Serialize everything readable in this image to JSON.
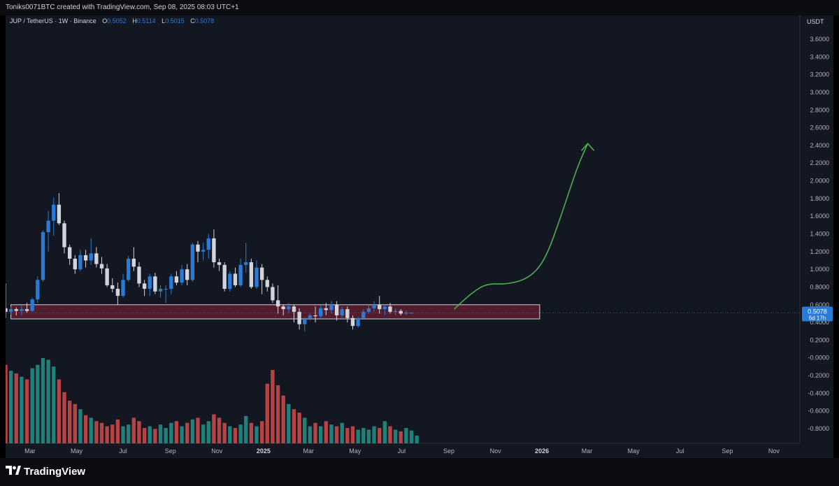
{
  "header": {
    "watermark": "Toniks0071BTC created with TradingView.com, Sep 08, 2025 08:03 UTC+1"
  },
  "legend": {
    "symbol": "JUP / TetherUS · 1W · Binance",
    "o_label": "O",
    "o_value": "0.5052",
    "h_label": "H",
    "h_value": "0.5114",
    "l_label": "L",
    "l_value": "0.5015",
    "c_label": "C",
    "c_value": "0.5078"
  },
  "footer": {
    "brand": "TradingView",
    "logo_icon": "tradingview-logo-icon"
  },
  "colors": {
    "up": "#2a7bd8",
    "down": "#d1d4dc",
    "vol_up": "#26a69a",
    "vol_down": "#ef5350",
    "zone_fill": "#7b1f34",
    "projection": "#4caf50",
    "bg": "#131722"
  },
  "price_badge": {
    "price": "0.5078",
    "countdown": "6d 17h"
  },
  "chart_data": {
    "type": "candlestick",
    "title": "JUP / TetherUS · 1W · Binance",
    "currency_label": "USDT",
    "ylim": [
      -0.9,
      3.7
    ],
    "y_ticks": [
      "3.6000",
      "3.4000",
      "3.2000",
      "3.0000",
      "2.8000",
      "2.6000",
      "2.4000",
      "2.2000",
      "2.0000",
      "1.8000",
      "1.6000",
      "1.4000",
      "1.2000",
      "1.0000",
      "0.8000",
      "0.6000",
      "0.4000",
      "0.2000",
      "-0.0000",
      "-0.2000",
      "-0.4000",
      "-0.6000",
      "-0.8000"
    ],
    "x_ticks": [
      {
        "label": "Mar",
        "date": "2024-03-01"
      },
      {
        "label": "May",
        "date": "2024-05-01"
      },
      {
        "label": "Jul",
        "date": "2024-07-01"
      },
      {
        "label": "Sep",
        "date": "2024-09-01"
      },
      {
        "label": "Nov",
        "date": "2024-11-01"
      },
      {
        "label": "2025",
        "date": "2025-01-01",
        "bold": true
      },
      {
        "label": "Mar",
        "date": "2025-03-01"
      },
      {
        "label": "May",
        "date": "2025-05-01"
      },
      {
        "label": "Jul",
        "date": "2025-07-01"
      },
      {
        "label": "Sep",
        "date": "2025-09-01"
      },
      {
        "label": "Nov",
        "date": "2025-11-01"
      },
      {
        "label": "2026",
        "date": "2026-01-01",
        "bold": true
      },
      {
        "label": "Mar",
        "date": "2026-03-01"
      },
      {
        "label": "May",
        "date": "2026-05-01"
      },
      {
        "label": "Jul",
        "date": "2026-07-01"
      },
      {
        "label": "Sep",
        "date": "2026-09-01"
      },
      {
        "label": "Nov",
        "date": "2026-11-01"
      }
    ],
    "x_start": "2024-01-29",
    "x_end": "2026-12-05",
    "candles": [
      {
        "o": 0.56,
        "h": 0.84,
        "l": 0.45,
        "c": 0.52
      },
      {
        "o": 0.52,
        "h": 0.58,
        "l": 0.49,
        "c": 0.55
      },
      {
        "o": 0.55,
        "h": 0.57,
        "l": 0.48,
        "c": 0.53
      },
      {
        "o": 0.53,
        "h": 0.6,
        "l": 0.48,
        "c": 0.55
      },
      {
        "o": 0.55,
        "h": 0.62,
        "l": 0.51,
        "c": 0.53
      },
      {
        "o": 0.53,
        "h": 0.68,
        "l": 0.52,
        "c": 0.66
      },
      {
        "o": 0.66,
        "h": 0.92,
        "l": 0.62,
        "c": 0.88
      },
      {
        "o": 0.88,
        "h": 1.44,
        "l": 0.86,
        "c": 1.42
      },
      {
        "o": 1.42,
        "h": 1.66,
        "l": 1.2,
        "c": 1.55
      },
      {
        "o": 1.55,
        "h": 1.81,
        "l": 1.38,
        "c": 1.73
      },
      {
        "o": 1.73,
        "h": 1.86,
        "l": 1.5,
        "c": 1.52
      },
      {
        "o": 1.52,
        "h": 1.55,
        "l": 1.18,
        "c": 1.25
      },
      {
        "o": 1.25,
        "h": 1.28,
        "l": 1.05,
        "c": 1.12
      },
      {
        "o": 1.12,
        "h": 1.16,
        "l": 0.95,
        "c": 1.0
      },
      {
        "o": 1.0,
        "h": 1.22,
        "l": 0.98,
        "c": 1.16
      },
      {
        "o": 1.16,
        "h": 1.22,
        "l": 1.02,
        "c": 1.1
      },
      {
        "o": 1.1,
        "h": 1.35,
        "l": 1.05,
        "c": 1.18
      },
      {
        "o": 1.18,
        "h": 1.25,
        "l": 1.02,
        "c": 1.06
      },
      {
        "o": 1.06,
        "h": 1.14,
        "l": 0.95,
        "c": 1.01
      },
      {
        "o": 1.01,
        "h": 1.06,
        "l": 0.8,
        "c": 0.82
      },
      {
        "o": 0.82,
        "h": 0.9,
        "l": 0.74,
        "c": 0.78
      },
      {
        "o": 0.78,
        "h": 0.85,
        "l": 0.6,
        "c": 0.7
      },
      {
        "o": 0.7,
        "h": 0.95,
        "l": 0.68,
        "c": 0.88
      },
      {
        "o": 0.88,
        "h": 1.15,
        "l": 0.86,
        "c": 1.12
      },
      {
        "o": 1.12,
        "h": 1.25,
        "l": 0.98,
        "c": 1.03
      },
      {
        "o": 1.03,
        "h": 1.08,
        "l": 0.8,
        "c": 0.84
      },
      {
        "o": 0.84,
        "h": 0.88,
        "l": 0.7,
        "c": 0.78
      },
      {
        "o": 0.78,
        "h": 0.95,
        "l": 0.7,
        "c": 0.92
      },
      {
        "o": 0.92,
        "h": 0.96,
        "l": 0.72,
        "c": 0.75
      },
      {
        "o": 0.75,
        "h": 0.82,
        "l": 0.68,
        "c": 0.78
      },
      {
        "o": 0.78,
        "h": 0.82,
        "l": 0.62,
        "c": 0.78
      },
      {
        "o": 0.78,
        "h": 0.95,
        "l": 0.72,
        "c": 0.92
      },
      {
        "o": 0.92,
        "h": 0.98,
        "l": 0.82,
        "c": 0.85
      },
      {
        "o": 0.85,
        "h": 1.05,
        "l": 0.82,
        "c": 1.0
      },
      {
        "o": 1.0,
        "h": 1.06,
        "l": 0.82,
        "c": 0.88
      },
      {
        "o": 0.88,
        "h": 1.3,
        "l": 0.86,
        "c": 1.28
      },
      {
        "o": 1.28,
        "h": 1.32,
        "l": 1.08,
        "c": 1.2
      },
      {
        "o": 1.2,
        "h": 1.3,
        "l": 1.1,
        "c": 1.22
      },
      {
        "o": 1.22,
        "h": 1.4,
        "l": 1.12,
        "c": 1.35
      },
      {
        "o": 1.35,
        "h": 1.45,
        "l": 1.02,
        "c": 1.08
      },
      {
        "o": 1.08,
        "h": 1.12,
        "l": 0.98,
        "c": 1.05
      },
      {
        "o": 1.05,
        "h": 1.08,
        "l": 0.75,
        "c": 0.78
      },
      {
        "o": 0.78,
        "h": 0.98,
        "l": 0.75,
        "c": 0.95
      },
      {
        "o": 0.95,
        "h": 1.02,
        "l": 0.8,
        "c": 0.82
      },
      {
        "o": 0.82,
        "h": 1.12,
        "l": 0.8,
        "c": 1.05
      },
      {
        "o": 1.05,
        "h": 1.3,
        "l": 0.96,
        "c": 1.08
      },
      {
        "o": 1.08,
        "h": 1.12,
        "l": 0.78,
        "c": 0.8
      },
      {
        "o": 0.8,
        "h": 1.1,
        "l": 0.78,
        "c": 1.02
      },
      {
        "o": 1.02,
        "h": 1.06,
        "l": 0.72,
        "c": 0.88
      },
      {
        "o": 0.88,
        "h": 0.92,
        "l": 0.75,
        "c": 0.8
      },
      {
        "o": 0.8,
        "h": 0.84,
        "l": 0.62,
        "c": 0.65
      },
      {
        "o": 0.65,
        "h": 0.82,
        "l": 0.5,
        "c": 0.58
      },
      {
        "o": 0.58,
        "h": 0.6,
        "l": 0.48,
        "c": 0.55
      },
      {
        "o": 0.55,
        "h": 0.62,
        "l": 0.5,
        "c": 0.58
      },
      {
        "o": 0.58,
        "h": 0.6,
        "l": 0.4,
        "c": 0.52
      },
      {
        "o": 0.52,
        "h": 0.56,
        "l": 0.32,
        "c": 0.38
      },
      {
        "o": 0.38,
        "h": 0.46,
        "l": 0.3,
        "c": 0.44
      },
      {
        "o": 0.44,
        "h": 0.5,
        "l": 0.42,
        "c": 0.48
      },
      {
        "o": 0.48,
        "h": 0.58,
        "l": 0.4,
        "c": 0.47
      },
      {
        "o": 0.47,
        "h": 0.6,
        "l": 0.45,
        "c": 0.56
      },
      {
        "o": 0.56,
        "h": 0.62,
        "l": 0.48,
        "c": 0.54
      },
      {
        "o": 0.54,
        "h": 0.64,
        "l": 0.5,
        "c": 0.6
      },
      {
        "o": 0.6,
        "h": 0.64,
        "l": 0.42,
        "c": 0.48
      },
      {
        "o": 0.48,
        "h": 0.58,
        "l": 0.45,
        "c": 0.55
      },
      {
        "o": 0.55,
        "h": 0.58,
        "l": 0.4,
        "c": 0.45
      },
      {
        "o": 0.45,
        "h": 0.48,
        "l": 0.32,
        "c": 0.36
      },
      {
        "o": 0.36,
        "h": 0.46,
        "l": 0.34,
        "c": 0.45
      },
      {
        "o": 0.45,
        "h": 0.55,
        "l": 0.44,
        "c": 0.52
      },
      {
        "o": 0.52,
        "h": 0.6,
        "l": 0.5,
        "c": 0.56
      },
      {
        "o": 0.56,
        "h": 0.64,
        "l": 0.52,
        "c": 0.6
      },
      {
        "o": 0.6,
        "h": 0.7,
        "l": 0.5,
        "c": 0.55
      },
      {
        "o": 0.55,
        "h": 0.6,
        "l": 0.48,
        "c": 0.58
      },
      {
        "o": 0.58,
        "h": 0.62,
        "l": 0.5,
        "c": 0.52
      },
      {
        "o": 0.52,
        "h": 0.56,
        "l": 0.48,
        "c": 0.53
      },
      {
        "o": 0.53,
        "h": 0.55,
        "l": 0.48,
        "c": 0.5
      },
      {
        "o": 0.5,
        "h": 0.54,
        "l": 0.48,
        "c": 0.51
      },
      {
        "o": 0.5052,
        "h": 0.5114,
        "l": 0.5015,
        "c": 0.5078
      }
    ],
    "volume": [
      0.92,
      0.85,
      0.82,
      0.78,
      0.75,
      0.88,
      0.92,
      1.0,
      0.98,
      0.9,
      0.75,
      0.6,
      0.5,
      0.46,
      0.4,
      0.33,
      0.3,
      0.26,
      0.24,
      0.2,
      0.22,
      0.28,
      0.2,
      0.22,
      0.3,
      0.26,
      0.18,
      0.2,
      0.17,
      0.22,
      0.18,
      0.24,
      0.26,
      0.2,
      0.24,
      0.28,
      0.3,
      0.22,
      0.26,
      0.34,
      0.3,
      0.24,
      0.2,
      0.18,
      0.22,
      0.32,
      0.24,
      0.2,
      0.26,
      0.7,
      0.86,
      0.68,
      0.56,
      0.46,
      0.4,
      0.36,
      0.3,
      0.2,
      0.24,
      0.2,
      0.26,
      0.22,
      0.2,
      0.24,
      0.18,
      0.2,
      0.16,
      0.18,
      0.16,
      0.2,
      0.18,
      0.26,
      0.2,
      0.16,
      0.14,
      0.18,
      0.15,
      0.09
    ],
    "support_zone": {
      "from": "2024-02-05",
      "to": "2025-12-29",
      "low": 0.44,
      "high": 0.6
    },
    "projection": [
      {
        "date": "2025-09-08",
        "value": 0.55
      },
      {
        "date": "2025-09-29",
        "value": 0.72
      },
      {
        "date": "2025-10-20",
        "value": 0.84
      },
      {
        "date": "2025-11-17",
        "value": 0.83
      },
      {
        "date": "2025-12-15",
        "value": 0.9
      },
      {
        "date": "2026-01-05",
        "value": 1.1
      },
      {
        "date": "2026-01-26",
        "value": 1.6
      },
      {
        "date": "2026-02-16",
        "value": 2.15
      },
      {
        "date": "2026-03-02",
        "value": 2.42
      }
    ]
  }
}
